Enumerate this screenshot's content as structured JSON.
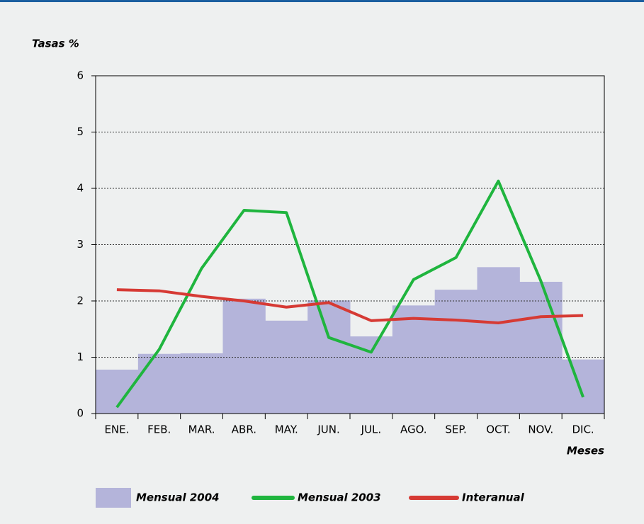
{
  "chart_data": {
    "type": "bar_line",
    "y_axis_label": "Tasas %",
    "x_axis_label": "Meses",
    "categories": [
      "ENE.",
      "FEB.",
      "MAR.",
      "ABR.",
      "MAY.",
      "JUN.",
      "JUL.",
      "AGO.",
      "SEP.",
      "OCT.",
      "NOV.",
      "DIC."
    ],
    "series": [
      {
        "name": "Mensual 2004",
        "type": "bar",
        "color": "#b4b4da",
        "values": [
          0.78,
          1.06,
          1.07,
          2.04,
          1.65,
          2.01,
          1.37,
          1.92,
          2.2,
          2.6,
          2.34,
          0.96
        ]
      },
      {
        "name": "Mensual 2003",
        "type": "line",
        "color": "#1fb53e",
        "values": [
          0.11,
          1.14,
          2.58,
          3.61,
          3.57,
          1.35,
          1.09,
          2.38,
          2.77,
          4.13,
          2.36,
          0.29
        ]
      },
      {
        "name": "Interanual",
        "type": "line",
        "color": "#d63a34",
        "values": [
          2.2,
          2.18,
          2.08,
          2.0,
          1.89,
          1.97,
          1.65,
          1.69,
          1.66,
          1.61,
          1.72,
          1.74
        ]
      }
    ],
    "ylim": [
      0,
      6
    ],
    "yticks": [
      0,
      1,
      2,
      3,
      4,
      5,
      6
    ],
    "grid": true
  }
}
